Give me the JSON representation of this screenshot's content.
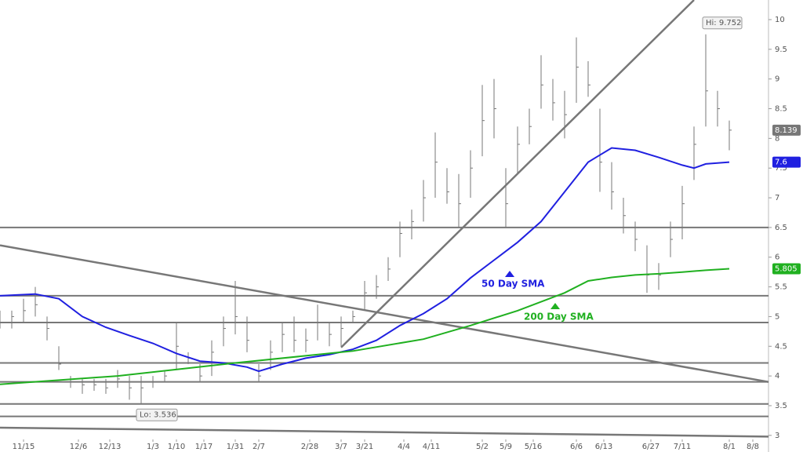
{
  "chart_data": {
    "type": "ohlc",
    "xlim": [
      0,
      196
    ],
    "ylim": [
      2.72,
      10.33
    ],
    "xticks": [
      {
        "value": 6,
        "label": "11/15"
      },
      {
        "value": 20,
        "label": "12/6"
      },
      {
        "value": 28,
        "label": "12/13"
      },
      {
        "value": 39,
        "label": "1/3"
      },
      {
        "value": 45,
        "label": "1/10"
      },
      {
        "value": 52,
        "label": "1/17"
      },
      {
        "value": 60,
        "label": "1/31"
      },
      {
        "value": 66,
        "label": "2/7"
      },
      {
        "value": 79,
        "label": "2/28"
      },
      {
        "value": 87,
        "label": "3/7"
      },
      {
        "value": 93,
        "label": "3/21"
      },
      {
        "value": 103,
        "label": "4/4"
      },
      {
        "value": 110,
        "label": "4/11"
      },
      {
        "value": 123,
        "label": "5/2"
      },
      {
        "value": 129,
        "label": "5/9"
      },
      {
        "value": 136,
        "label": "5/16"
      },
      {
        "value": 147,
        "label": "6/6"
      },
      {
        "value": 154,
        "label": "6/13"
      },
      {
        "value": 166,
        "label": "6/27"
      },
      {
        "value": 174,
        "label": "7/11"
      },
      {
        "value": 186,
        "label": "8/1"
      },
      {
        "value": 192,
        "label": "8/8"
      }
    ],
    "yticks": [
      3,
      3.5,
      4,
      4.5,
      5,
      5.5,
      6,
      6.5,
      7,
      7.5,
      8,
      8.5,
      9,
      9.5,
      10
    ],
    "price": {
      "color": "#777777",
      "x": [
        0,
        3,
        6,
        9,
        12,
        15,
        18,
        21,
        24,
        27,
        30,
        33,
        36,
        39,
        42,
        45,
        48,
        51,
        54,
        57,
        60,
        63,
        66,
        69,
        72,
        75,
        78,
        81,
        84,
        87,
        90,
        93,
        96,
        99,
        102,
        105,
        108,
        111,
        114,
        117,
        120,
        123,
        126,
        129,
        132,
        135,
        138,
        141,
        144,
        147,
        150,
        153,
        156,
        159,
        162,
        165,
        168,
        171,
        174,
        177,
        180,
        183,
        186
      ],
      "high": [
        5.1,
        5.1,
        5.3,
        5.5,
        5.0,
        4.5,
        4.0,
        3.95,
        3.95,
        3.95,
        4.1,
        4.0,
        4.0,
        4.0,
        4.1,
        4.9,
        4.4,
        4.2,
        4.6,
        5.0,
        5.6,
        5.0,
        4.2,
        4.6,
        4.9,
        5.0,
        4.8,
        5.2,
        4.9,
        5.0,
        5.1,
        5.6,
        5.7,
        6.0,
        6.6,
        6.8,
        7.3,
        8.1,
        7.5,
        7.4,
        7.8,
        8.9,
        9.0,
        7.5,
        8.2,
        8.5,
        9.4,
        9.0,
        8.8,
        9.7,
        9.3,
        8.5,
        7.6,
        7.0,
        6.6,
        6.2,
        5.9,
        6.6,
        7.2,
        8.2,
        9.752,
        8.8,
        8.3
      ],
      "low": [
        4.8,
        4.8,
        4.9,
        5.0,
        4.6,
        4.1,
        3.8,
        3.7,
        3.75,
        3.7,
        3.8,
        3.6,
        3.536,
        3.8,
        3.9,
        4.1,
        4.2,
        3.9,
        4.0,
        4.5,
        4.7,
        4.4,
        3.9,
        4.1,
        4.4,
        4.4,
        4.4,
        4.6,
        4.5,
        4.5,
        4.9,
        5.1,
        5.3,
        5.6,
        6.0,
        6.3,
        6.6,
        7.0,
        6.9,
        6.5,
        7.0,
        7.7,
        8.0,
        6.5,
        7.4,
        7.9,
        8.5,
        8.3,
        8.0,
        8.6,
        8.7,
        7.1,
        6.8,
        6.4,
        6.1,
        5.4,
        5.45,
        6.0,
        6.3,
        7.3,
        8.2,
        8.2,
        7.8
      ],
      "close": [
        4.9,
        5.0,
        5.1,
        5.2,
        4.8,
        4.2,
        3.9,
        3.85,
        3.85,
        3.8,
        3.95,
        3.8,
        3.8,
        3.9,
        4.0,
        4.5,
        4.3,
        4.0,
        4.4,
        4.8,
        5.0,
        4.6,
        4.0,
        4.4,
        4.7,
        4.6,
        4.6,
        4.9,
        4.7,
        4.8,
        5.0,
        5.4,
        5.5,
        5.8,
        6.4,
        6.6,
        7.0,
        7.6,
        7.1,
        6.9,
        7.5,
        8.3,
        8.5,
        6.9,
        7.9,
        8.2,
        8.9,
        8.6,
        8.4,
        9.2,
        8.9,
        7.6,
        7.1,
        6.7,
        6.3,
        5.7,
        5.7,
        6.3,
        6.9,
        7.9,
        8.8,
        8.5,
        8.139
      ]
    },
    "hi_label": "Hi: 9.752",
    "lo_label": "Lo: 3.536",
    "series": [
      {
        "name": "50 Day SMA",
        "color": "#2020e0",
        "x": [
          0,
          9,
          15,
          21,
          27,
          33,
          39,
          45,
          51,
          57,
          63,
          66,
          72,
          78,
          84,
          90,
          96,
          102,
          108,
          114,
          120,
          126,
          132,
          138,
          144,
          150,
          156,
          162,
          168,
          174,
          177,
          180,
          186
        ],
        "values": [
          5.35,
          5.38,
          5.3,
          5.0,
          4.82,
          4.68,
          4.55,
          4.38,
          4.25,
          4.22,
          4.15,
          4.08,
          4.2,
          4.3,
          4.36,
          4.45,
          4.6,
          4.85,
          5.05,
          5.3,
          5.65,
          5.95,
          6.25,
          6.6,
          7.1,
          7.6,
          7.84,
          7.8,
          7.68,
          7.55,
          7.5,
          7.57,
          7.6
        ]
      },
      {
        "name": "200 Day SMA",
        "color": "#20b020",
        "x": [
          0,
          30,
          60,
          90,
          108,
          120,
          132,
          144,
          150,
          156,
          162,
          168,
          174,
          180,
          186
        ],
        "values": [
          3.86,
          4.0,
          4.22,
          4.42,
          4.62,
          4.85,
          5.1,
          5.4,
          5.6,
          5.66,
          5.7,
          5.72,
          5.75,
          5.78,
          5.805
        ]
      }
    ],
    "levels": [
      6.5,
      5.35,
      4.9,
      4.22,
      3.9,
      3.53,
      3.32
    ],
    "trend_lines": [
      {
        "x": [
          0,
          196
        ],
        "y": [
          6.2,
          3.9
        ]
      },
      {
        "x": [
          87,
          177
        ],
        "y": [
          4.48,
          10.33
        ]
      },
      {
        "x": [
          0,
          196
        ],
        "y": [
          3.13,
          2.98
        ]
      }
    ]
  }
}
